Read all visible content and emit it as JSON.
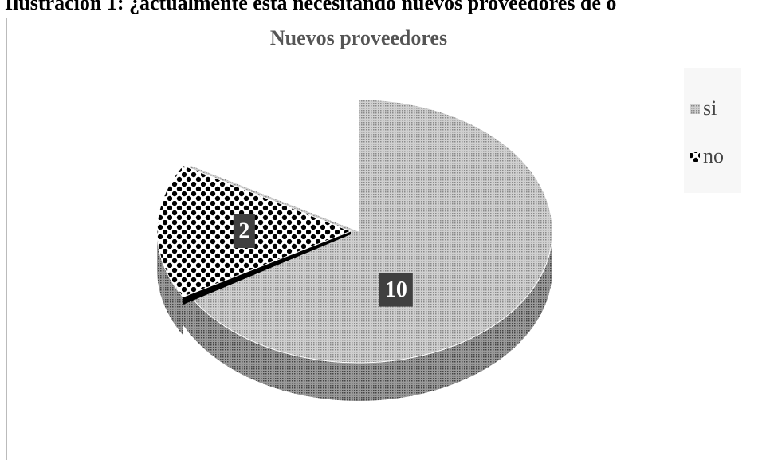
{
  "caption": "Ilustración 1: ¿actualmente está necesitando nuevos proveedores de o",
  "chart_data": {
    "type": "pie",
    "title": "Nuevos proveedores",
    "categories": [
      "si",
      "no"
    ],
    "values": [
      10,
      2
    ],
    "colors": [
      "#b8b8b8",
      "#000000"
    ],
    "legend": "right"
  }
}
